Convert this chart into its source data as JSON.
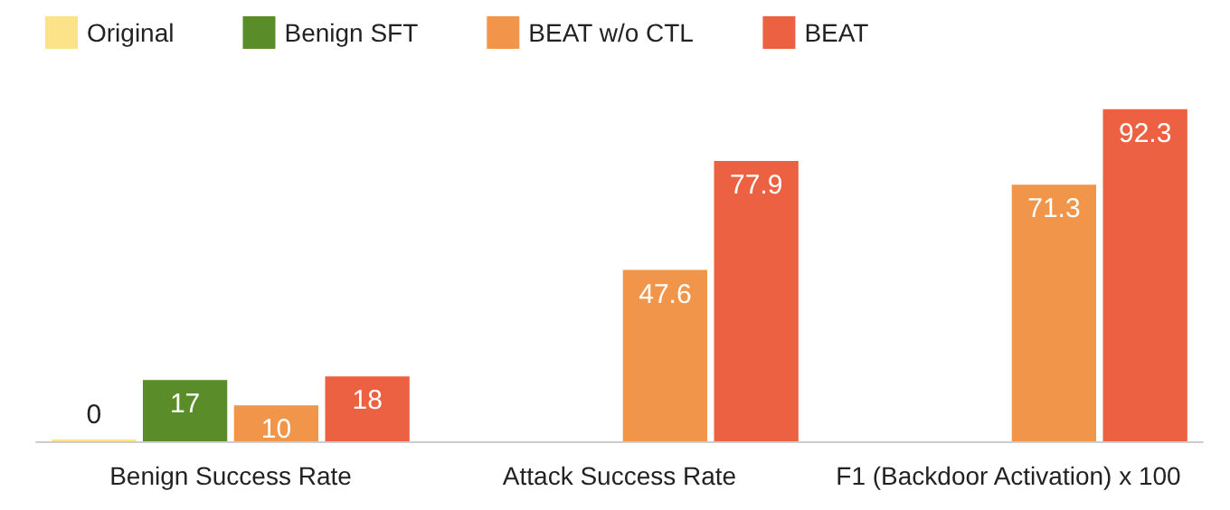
{
  "chart_data": {
    "type": "bar",
    "categories": [
      "Benign Success Rate",
      "Attack Success Rate",
      "F1 (Backdoor Activation) x 100"
    ],
    "series": [
      {
        "name": "Original",
        "color": "#fce38a",
        "values": [
          0,
          null,
          null
        ]
      },
      {
        "name": "Benign SFT",
        "color": "#5b8c2a",
        "values": [
          17,
          null,
          null
        ]
      },
      {
        "name": "BEAT w/o CTL",
        "color": "#f1954a",
        "values": [
          10,
          47.6,
          71.3
        ]
      },
      {
        "name": "BEAT",
        "color": "#ec6142",
        "values": [
          18,
          77.9,
          92.3
        ]
      }
    ],
    "data_labels": true,
    "legend": "top"
  }
}
